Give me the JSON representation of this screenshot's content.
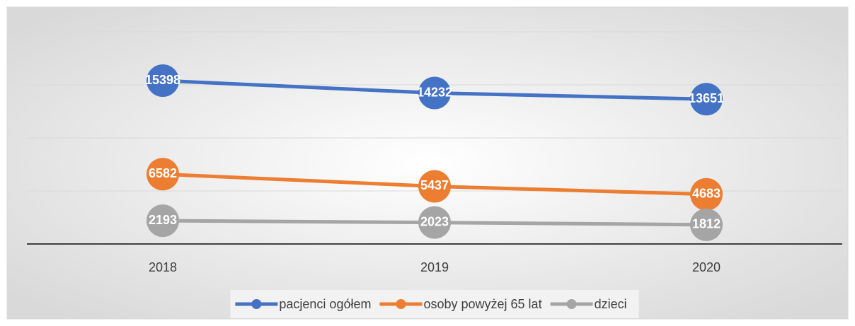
{
  "chart_data": {
    "type": "line",
    "categories": [
      "2018",
      "2019",
      "2020"
    ],
    "series": [
      {
        "name": "pacjenci ogółem",
        "color": "#4472c4",
        "values": [
          15398,
          14232,
          13651
        ]
      },
      {
        "name": "osoby powyżej 65 lat",
        "color": "#ed7d31",
        "values": [
          6582,
          5437,
          4683
        ]
      },
      {
        "name": "dzieci",
        "color": "#a5a5a5",
        "values": [
          2193,
          2023,
          1812
        ]
      }
    ],
    "ylim": [
      0,
      20000
    ],
    "yticks": [
      0,
      5000,
      10000,
      15000,
      20000
    ],
    "grid": true,
    "legend": "bottom"
  }
}
